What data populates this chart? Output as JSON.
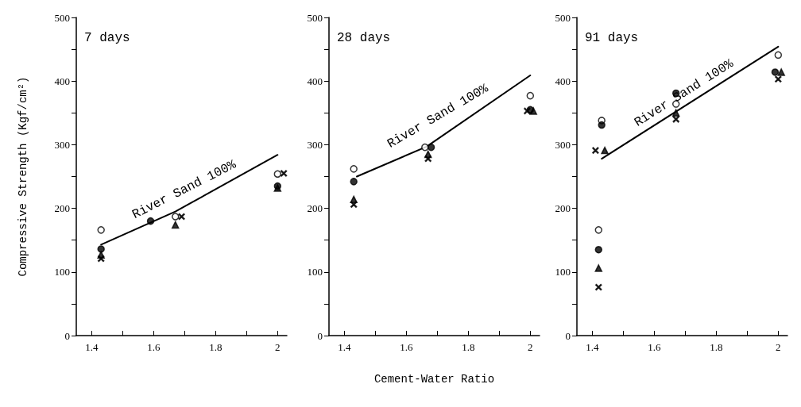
{
  "chart_data": [
    {
      "type": "scatter",
      "title": "7 days",
      "ylabel": "Compressive Strength (Kgf/cm²)",
      "xlim": [
        1.35,
        2.03
      ],
      "ylim": [
        0,
        500
      ],
      "xticks": [
        1.4,
        {
          "value": 1.5,
          "label": null
        },
        1.6,
        {
          "value": 1.7,
          "label": null
        },
        1.8,
        {
          "value": 1.9,
          "label": null
        },
        2.0
      ],
      "yticks": [
        0,
        {
          "value": 50,
          "label": null
        },
        100,
        {
          "value": 150,
          "label": null
        },
        200,
        {
          "value": 250,
          "label": null
        },
        300,
        {
          "value": 350,
          "label": null
        },
        400,
        {
          "value": 450,
          "label": null
        },
        500
      ],
      "series": [
        {
          "type": "scatter",
          "marker": "circle",
          "color": "#ffffff",
          "x": [
            1.43,
            1.67,
            2.0
          ],
          "values": [
            166,
            187,
            254
          ]
        },
        {
          "type": "scatter",
          "marker": "circle",
          "color": "#000000",
          "x": [
            1.43,
            1.59,
            2.0
          ],
          "values": [
            136,
            180,
            235
          ]
        },
        {
          "type": "scatter",
          "marker": "triangle",
          "color": "#000000",
          "x": [
            1.43,
            1.67,
            2.0
          ],
          "values": [
            127,
            174,
            232
          ]
        },
        {
          "type": "scatter",
          "marker": "cross",
          "color": "#000000",
          "x": [
            1.43,
            1.69,
            2.02
          ],
          "values": [
            121,
            187,
            255
          ]
        },
        {
          "type": "line",
          "name": "River Sand 100%",
          "marker": "none",
          "color": "#000000",
          "x": [
            1.43,
            1.67,
            2.0
          ],
          "values": [
            143,
            195,
            284
          ]
        }
      ]
    },
    {
      "type": "scatter",
      "title": "28 days",
      "xlabel": "Cement-Water Ratio",
      "xlim": [
        1.35,
        2.03
      ],
      "ylim": [
        0,
        500
      ],
      "xticks": [
        1.4,
        {
          "value": 1.5,
          "label": null
        },
        1.6,
        {
          "value": 1.7,
          "label": null
        },
        1.8,
        {
          "value": 1.9,
          "label": null
        },
        2.0
      ],
      "yticks": [
        0,
        {
          "value": 50,
          "label": null
        },
        100,
        {
          "value": 150,
          "label": null
        },
        200,
        {
          "value": 250,
          "label": null
        },
        300,
        {
          "value": 350,
          "label": null
        },
        400,
        {
          "value": 450,
          "label": null
        },
        500
      ],
      "series": [
        {
          "type": "scatter",
          "marker": "circle",
          "color": "#ffffff",
          "x": [
            1.43,
            1.66,
            2.0
          ],
          "values": [
            262,
            296,
            377
          ]
        },
        {
          "type": "scatter",
          "marker": "circle",
          "color": "#000000",
          "x": [
            1.43,
            1.68,
            2.0
          ],
          "values": [
            242,
            296,
            355
          ]
        },
        {
          "type": "scatter",
          "marker": "triangle",
          "color": "#000000",
          "x": [
            1.43,
            1.67,
            2.01
          ],
          "values": [
            214,
            285,
            353
          ]
        },
        {
          "type": "scatter",
          "marker": "cross",
          "color": "#000000",
          "x": [
            1.43,
            1.67,
            1.99
          ],
          "values": [
            206,
            278,
            353
          ]
        },
        {
          "type": "line",
          "name": "River Sand 100%",
          "marker": "none",
          "color": "#000000",
          "x": [
            1.44,
            1.665,
            2.0
          ],
          "values": [
            250,
            297,
            409
          ]
        }
      ]
    },
    {
      "type": "scatter",
      "title": "91 days",
      "xlim": [
        1.35,
        2.03
      ],
      "ylim": [
        0,
        500
      ],
      "xticks": [
        1.4,
        {
          "value": 1.5,
          "label": null
        },
        1.6,
        {
          "value": 1.7,
          "label": null
        },
        1.8,
        {
          "value": 1.9,
          "label": null
        },
        2.0
      ],
      "yticks": [
        0,
        {
          "value": 50,
          "label": null
        },
        100,
        {
          "value": 150,
          "label": null
        },
        200,
        {
          "value": 250,
          "label": null
        },
        300,
        {
          "value": 350,
          "label": null
        },
        400,
        {
          "value": 450,
          "label": null
        },
        500
      ],
      "series": [
        {
          "type": "scatter",
          "marker": "circle",
          "color": "#ffffff",
          "x": [
            1.42,
            1.43,
            1.67,
            2.0
          ],
          "values": [
            166,
            338,
            364,
            441
          ]
        },
        {
          "type": "scatter",
          "marker": "circle",
          "color": "#000000",
          "x": [
            1.42,
            1.43,
            1.67,
            1.99
          ],
          "values": [
            135,
            331,
            381,
            414
          ]
        },
        {
          "type": "scatter",
          "marker": "triangle",
          "color": "#000000",
          "x": [
            1.42,
            1.44,
            1.67,
            2.01
          ],
          "values": [
            106,
            291,
            350,
            414
          ]
        },
        {
          "type": "scatter",
          "marker": "cross",
          "color": "#000000",
          "x": [
            1.42,
            1.41,
            1.67,
            2.0
          ],
          "values": [
            76,
            291,
            340,
            403
          ]
        },
        {
          "type": "line",
          "name": "River Sand 100%",
          "marker": "none",
          "color": "#000000",
          "x": [
            1.43,
            2.0
          ],
          "values": [
            278,
            454
          ]
        }
      ]
    }
  ]
}
